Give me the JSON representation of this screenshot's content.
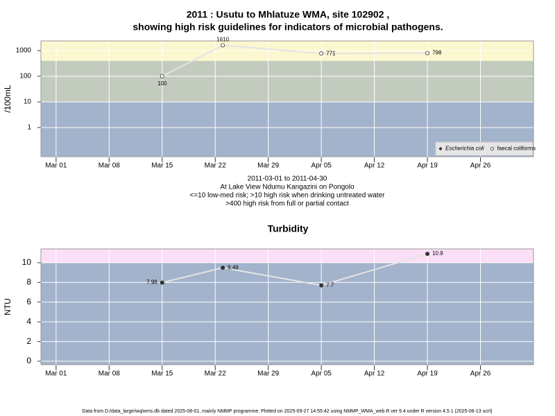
{
  "chart_data": [
    {
      "type": "line",
      "title": [
        "2011 : Usutu to Mhlatuze WMA, site 102902 ,",
        "showing high risk guidelines for indicators of microbial pathogens."
      ],
      "ylabel": "/100mL",
      "log_y": true,
      "ylim": [
        0.073,
        2390
      ],
      "yticks": [
        1,
        10,
        100,
        1000
      ],
      "xlim": [
        "2011-02-27",
        "2011-05-03"
      ],
      "xticks": [
        {
          "value": "2011-03-01",
          "label": "Mar 01"
        },
        {
          "value": "2011-03-08",
          "label": "Mar 08"
        },
        {
          "value": "2011-03-15",
          "label": "Mar 15"
        },
        {
          "value": "2011-03-22",
          "label": "Mar 22"
        },
        {
          "value": "2011-03-29",
          "label": "Mar 29"
        },
        {
          "value": "2011-04-05",
          "label": "Apr 05"
        },
        {
          "value": "2011-04-12",
          "label": "Apr 12"
        },
        {
          "value": "2011-04-19",
          "label": "Apr 19"
        },
        {
          "value": "2011-04-26",
          "label": "Apr 26"
        }
      ],
      "x": [
        "2011-03-15",
        "2011-03-23",
        "2011-04-05",
        "2011-04-19"
      ],
      "series": [
        {
          "name": "Escherichia coli",
          "color": "#333333",
          "marker": "filled",
          "values": [
            null,
            null,
            null,
            null
          ]
        },
        {
          "name": "faecal coliforms",
          "color": "#333333",
          "marker": "open",
          "values": [
            100,
            1610,
            771,
            798
          ]
        }
      ],
      "thresholds": [
        10,
        400
      ],
      "band_colors": [
        "#a3b3cc",
        "#c3cbbf",
        "#fbf7cf"
      ],
      "line_color": "#e4e4e4",
      "grid": true,
      "legend": "bottom-right",
      "notes": [
        "2011-03-01 to 2011-04-30",
        "At Lake View Ndumu Kangazini on Pongolo",
        "<=10 low-med risk; >10 high risk when drinking untreated water",
        ">400 high risk from full or partial contact"
      ]
    },
    {
      "type": "line",
      "title": "Turbidity",
      "ylabel": "NTU",
      "log_y": false,
      "ylim": [
        -0.35,
        11.4
      ],
      "yticks": [
        0,
        2,
        4,
        6,
        8,
        10
      ],
      "xlim": [
        "2011-02-27",
        "2011-05-03"
      ],
      "xticks": [
        {
          "value": "2011-03-01",
          "label": "Mar 01"
        },
        {
          "value": "2011-03-08",
          "label": "Mar 08"
        },
        {
          "value": "2011-03-15",
          "label": "Mar 15"
        },
        {
          "value": "2011-03-22",
          "label": "Mar 22"
        },
        {
          "value": "2011-03-29",
          "label": "Mar 29"
        },
        {
          "value": "2011-04-05",
          "label": "Apr 05"
        },
        {
          "value": "2011-04-12",
          "label": "Apr 12"
        },
        {
          "value": "2011-04-19",
          "label": "Apr 19"
        },
        {
          "value": "2011-04-26",
          "label": "Apr 26"
        }
      ],
      "x": [
        "2011-03-15",
        "2011-03-23",
        "2011-04-05",
        "2011-04-19"
      ],
      "series": [
        {
          "color": "#333333",
          "marker": "filled",
          "values": [
            7.98,
            9.49,
            7.7,
            10.9
          ]
        }
      ],
      "thresholds": [
        10
      ],
      "band_colors": [
        "#a3b3cc",
        "#fbdff7"
      ],
      "line_color": "#e4e4e4",
      "grid": true
    }
  ],
  "footer": "Data from D:/data_large/wq/wms.db dated 2025-08-01, mainly NMMP programme. Plotted on 2025-09-27 14:55:42 using NMMP_WMA_web.R ver 9.4 under R version 4.5.1 (2025-06-13 ucrt)"
}
